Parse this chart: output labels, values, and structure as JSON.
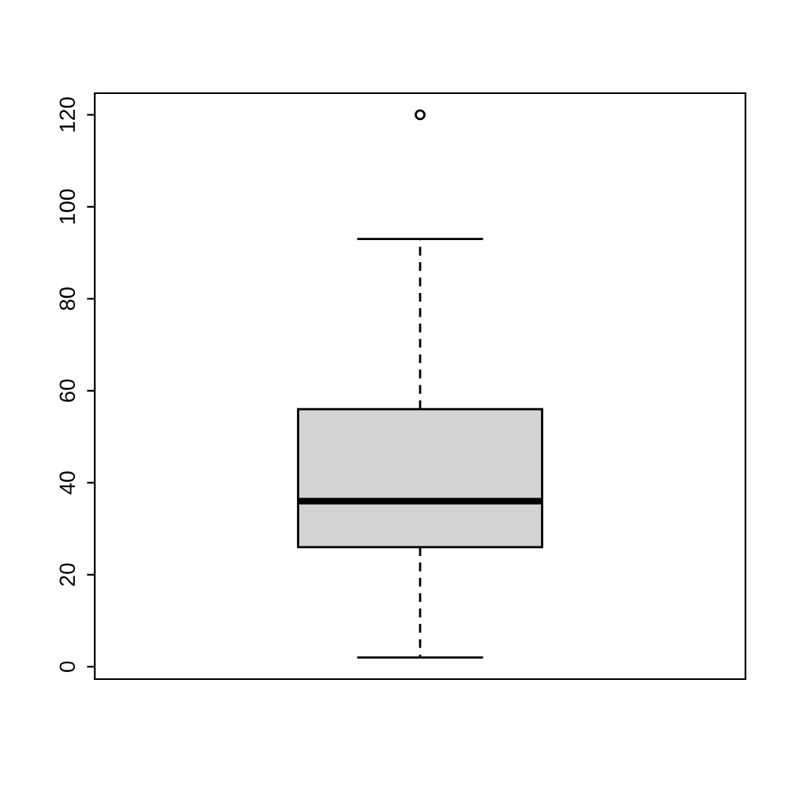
{
  "chart_data": {
    "type": "box",
    "categories": [
      null
    ],
    "boxes": [
      {
        "low": 2,
        "q1": 26,
        "median": 36,
        "q3": 56,
        "high": 93,
        "outliers": [
          120
        ]
      }
    ],
    "color": "#d3d3d3",
    "ylim": [
      -2.7,
      124.7
    ],
    "yticks": [
      0,
      20,
      40,
      60,
      80,
      100,
      120
    ],
    "grid": false,
    "tick_labels": "y"
  }
}
